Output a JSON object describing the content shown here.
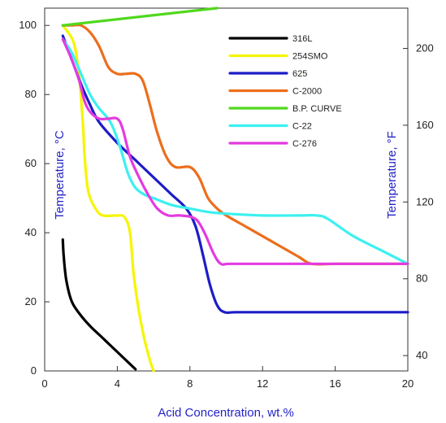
{
  "chart_data": {
    "type": "line",
    "xlabel": "Acid Concentration, wt.%",
    "ylabel_left": "Temperature, °C",
    "ylabel_right": "Temperature, °F",
    "xlim": [
      0,
      20
    ],
    "ylim_left": [
      0,
      105
    ],
    "ylim_right": [
      32,
      221
    ],
    "x_ticks": [
      0,
      4,
      8,
      12,
      16,
      20
    ],
    "y_ticks_left": [
      0,
      20,
      40,
      60,
      80,
      100
    ],
    "y_ticks_right": [
      40,
      80,
      120,
      160,
      200
    ],
    "grid": false,
    "legend_position": "top-right",
    "series": [
      {
        "name": "316L",
        "color": "#000000",
        "points": [
          [
            1.0,
            38
          ],
          [
            1.05,
            33
          ],
          [
            1.2,
            26
          ],
          [
            1.5,
            20
          ],
          [
            2.0,
            16
          ],
          [
            2.5,
            13
          ],
          [
            3.0,
            10.5
          ],
          [
            3.5,
            8
          ],
          [
            4.0,
            5.5
          ],
          [
            4.5,
            3
          ],
          [
            5.0,
            0.5
          ]
        ]
      },
      {
        "name": "254SMO",
        "color": "#f5f500",
        "points": [
          [
            1.0,
            100
          ],
          [
            1.6,
            95
          ],
          [
            1.9,
            85
          ],
          [
            2.1,
            72
          ],
          [
            2.2,
            62
          ],
          [
            2.4,
            52
          ],
          [
            2.8,
            47
          ],
          [
            3.2,
            45
          ],
          [
            4.0,
            45
          ],
          [
            4.4,
            44.5
          ],
          [
            4.7,
            40
          ],
          [
            4.9,
            28
          ],
          [
            5.2,
            17
          ],
          [
            5.5,
            9
          ],
          [
            5.8,
            3
          ],
          [
            6.0,
            0
          ]
        ]
      },
      {
        "name": "625",
        "color": "#1c1cc8",
        "points": [
          [
            1.0,
            97
          ],
          [
            1.5,
            90
          ],
          [
            2.0,
            83
          ],
          [
            2.5,
            77
          ],
          [
            3.0,
            72
          ],
          [
            4.0,
            66
          ],
          [
            5.0,
            61
          ],
          [
            6.0,
            56
          ],
          [
            7.0,
            51
          ],
          [
            7.8,
            47
          ],
          [
            8.3,
            42
          ],
          [
            8.7,
            34
          ],
          [
            9.1,
            25
          ],
          [
            9.5,
            19
          ],
          [
            9.9,
            17
          ],
          [
            10.5,
            17
          ],
          [
            12,
            17
          ],
          [
            16,
            17
          ],
          [
            20,
            17
          ]
        ]
      },
      {
        "name": "C-2000",
        "color": "#ec6e1c",
        "points": [
          [
            1.0,
            100
          ],
          [
            1.5,
            100
          ],
          [
            2.0,
            100
          ],
          [
            2.5,
            98
          ],
          [
            3.0,
            94
          ],
          [
            3.5,
            88
          ],
          [
            4.0,
            86
          ],
          [
            4.5,
            86
          ],
          [
            5.0,
            86
          ],
          [
            5.4,
            84
          ],
          [
            5.8,
            77
          ],
          [
            6.2,
            69
          ],
          [
            6.7,
            62
          ],
          [
            7.2,
            59
          ],
          [
            8.0,
            59
          ],
          [
            8.5,
            56
          ],
          [
            9.0,
            50
          ],
          [
            9.5,
            47
          ],
          [
            10.0,
            45
          ],
          [
            11.0,
            42
          ],
          [
            12.0,
            39
          ],
          [
            13.0,
            36
          ],
          [
            14.0,
            33
          ],
          [
            14.7,
            31
          ],
          [
            16,
            31
          ],
          [
            18,
            31
          ],
          [
            20,
            31
          ]
        ]
      },
      {
        "name": "B.P. CURVE",
        "color": "#50d81e",
        "points": [
          [
            1.0,
            100
          ],
          [
            9.5,
            105
          ]
        ]
      },
      {
        "name": "C-22",
        "color": "#3cf0f0",
        "points": [
          [
            1.0,
            96
          ],
          [
            1.5,
            92
          ],
          [
            2.0,
            86
          ],
          [
            2.5,
            80
          ],
          [
            3.0,
            76
          ],
          [
            3.5,
            73
          ],
          [
            3.8,
            70
          ],
          [
            4.2,
            64
          ],
          [
            4.6,
            57
          ],
          [
            5.0,
            53
          ],
          [
            5.5,
            51
          ],
          [
            6.0,
            50
          ],
          [
            7.0,
            48
          ],
          [
            8.0,
            47
          ],
          [
            9.0,
            46
          ],
          [
            10.0,
            45.5
          ],
          [
            12.0,
            45
          ],
          [
            14.0,
            45
          ],
          [
            15.0,
            45
          ],
          [
            15.6,
            44
          ],
          [
            17.0,
            39
          ],
          [
            18.5,
            35
          ],
          [
            20.0,
            31
          ]
        ]
      },
      {
        "name": "C-276",
        "color": "#e43ae0",
        "points": [
          [
            1.0,
            96
          ],
          [
            1.5,
            90
          ],
          [
            1.9,
            84
          ],
          [
            2.2,
            78
          ],
          [
            2.5,
            75
          ],
          [
            3.0,
            73
          ],
          [
            3.5,
            73
          ],
          [
            4.0,
            73
          ],
          [
            4.3,
            70
          ],
          [
            4.7,
            62
          ],
          [
            5.2,
            56
          ],
          [
            5.7,
            51
          ],
          [
            6.2,
            47
          ],
          [
            6.8,
            45
          ],
          [
            7.5,
            45
          ],
          [
            8.3,
            44
          ],
          [
            8.8,
            40
          ],
          [
            9.3,
            34
          ],
          [
            9.7,
            31
          ],
          [
            10.2,
            31
          ],
          [
            12,
            31
          ],
          [
            16,
            31
          ],
          [
            20,
            31
          ]
        ]
      }
    ]
  }
}
